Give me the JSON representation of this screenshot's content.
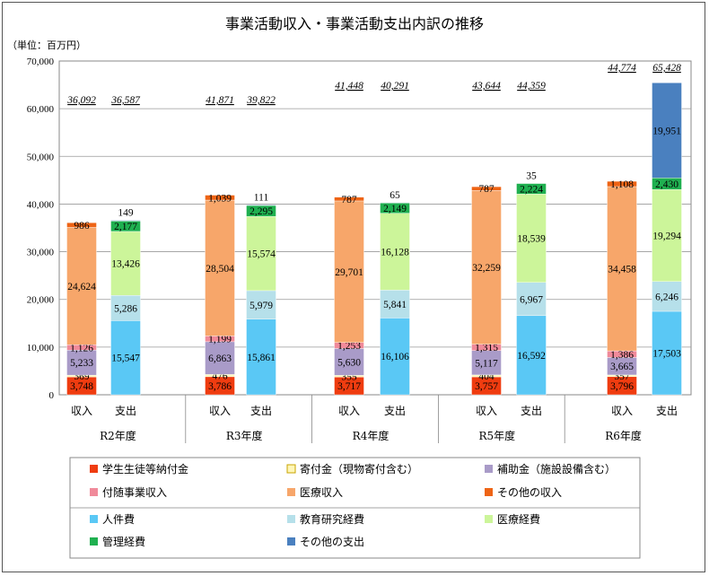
{
  "chart_data": {
    "type": "bar",
    "stacked": true,
    "title": "事業活動収入・事業活動支出内訳の推移",
    "unit_label": "（単位：百万円）",
    "ylim": [
      0,
      70000
    ],
    "yticks": [
      "0",
      "10,000",
      "20,000",
      "30,000",
      "40,000",
      "50,000",
      "60,000",
      "70,000"
    ],
    "grid": true,
    "legend_position": "bottom",
    "years": [
      "R2年度",
      "R3年度",
      "R4年度",
      "R5年度",
      "R6年度"
    ],
    "bar_labels": [
      "収入",
      "支出"
    ],
    "income_series": [
      {
        "name": "学生生徒等納付金",
        "color": "#ef3c10",
        "values": [
          3748,
          3786,
          3717,
          3757,
          3796
        ],
        "labels": [
          "3,748",
          "3,786",
          "3,717",
          "3,757",
          "3,796"
        ]
      },
      {
        "name": "寄付金（現物寄付含む）",
        "color": "#fff6b8",
        "values": [
          369,
          476,
          355,
          404,
          357
        ],
        "labels": [
          "369",
          "476",
          "355",
          "404",
          "357"
        ]
      },
      {
        "name": "補助金（施設設備含む）",
        "color": "#a99bc8",
        "values": [
          5233,
          6863,
          5630,
          5117,
          3665
        ],
        "labels": [
          "5,233",
          "6,863",
          "5,630",
          "5,117",
          "3,665"
        ]
      },
      {
        "name": "付随事業収入",
        "color": "#f08a9a",
        "values": [
          1126,
          1199,
          1253,
          1315,
          1386
        ],
        "labels": [
          "1,126",
          "1,199",
          "1,253",
          "1,315",
          "1,386"
        ]
      },
      {
        "name": "医療収入",
        "color": "#f7a66a",
        "values": [
          24624,
          28504,
          29701,
          32259,
          34458
        ],
        "labels": [
          "24,624",
          "28,504",
          "29,701",
          "32,259",
          "34,458"
        ]
      },
      {
        "name": "その他の収入",
        "color": "#ee6415",
        "values": [
          986,
          1039,
          787,
          787,
          1108
        ],
        "labels": [
          "986",
          "1,039",
          "787",
          "787",
          "1,108"
        ]
      }
    ],
    "expense_series": [
      {
        "name": "人件費",
        "color": "#5ac8f5",
        "values": [
          15547,
          15861,
          16106,
          16592,
          17503
        ],
        "labels": [
          "15,547",
          "15,861",
          "16,106",
          "16,592",
          "17,503"
        ]
      },
      {
        "name": "教育研究経費",
        "color": "#b6e0ea",
        "values": [
          5286,
          5979,
          5841,
          6967,
          6246
        ],
        "labels": [
          "5,286",
          "5,979",
          "5,841",
          "6,967",
          "6,246"
        ]
      },
      {
        "name": "医療経費",
        "color": "#ccf59a",
        "values": [
          13426,
          15574,
          16128,
          18539,
          19294
        ],
        "labels": [
          "13,426",
          "15,574",
          "16,128",
          "18,539",
          "19,294"
        ]
      },
      {
        "name": "管理経費",
        "color": "#1fb050",
        "values": [
          2177,
          2295,
          2149,
          2224,
          2430
        ],
        "labels": [
          "2,177",
          "2,295",
          "2,149",
          "2,224",
          "2,430"
        ]
      },
      {
        "name": "その他の支出",
        "color": "#4a80bf",
        "values": [
          149,
          111,
          65,
          35,
          19951
        ],
        "labels": [
          "149",
          "111",
          "65",
          "35",
          "19,951"
        ]
      }
    ],
    "income_totals": [
      "36,092",
      "41,871",
      "41,448",
      "43,644",
      "44,774"
    ],
    "expense_totals": [
      "36,587",
      "39,822",
      "40,291",
      "44,359",
      "65,428"
    ]
  }
}
